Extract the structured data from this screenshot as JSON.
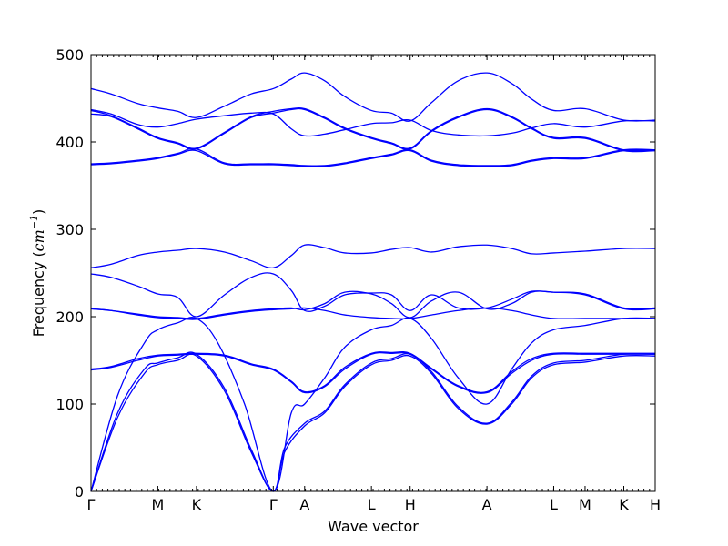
{
  "chart_data": {
    "type": "line",
    "xlabel": "Wave vector",
    "ylabel": "Frequency (cm⁻¹)",
    "ylabel_base": "Frequency (",
    "ylabel_unit": "cm",
    "ylabel_exp": "−1",
    "ylabel_close": ")",
    "ylim": [
      0,
      500
    ],
    "yticks": [
      0,
      100,
      200,
      300,
      400,
      500
    ],
    "grid": false,
    "line_color": "#0000ff",
    "path_points": [
      {
        "label": "Γ",
        "x": 0.0
      },
      {
        "label": "M",
        "x": 1.0
      },
      {
        "label": "K",
        "x": 1.58
      },
      {
        "label": "Γ",
        "x": 2.73
      },
      {
        "label": "A",
        "x": 3.2
      },
      {
        "label": "L",
        "x": 4.2
      },
      {
        "label": "H",
        "x": 4.78
      },
      {
        "label": "A",
        "x": 5.93
      },
      {
        "label": "L",
        "x": 6.93
      },
      {
        "label": "M",
        "x": 7.4
      },
      {
        "label": "K",
        "x": 7.98
      },
      {
        "label": "H",
        "x": 8.45
      }
    ],
    "series": [
      {
        "x": [
          0,
          0.4,
          0.8,
          1.0,
          1.3,
          1.58,
          2.0,
          2.4,
          2.73,
          2.9,
          3.2,
          3.5,
          3.8,
          4.2,
          4.5,
          4.78,
          5.1,
          5.5,
          5.93,
          6.3,
          6.6,
          6.93,
          7.4,
          7.98,
          8.45
        ],
        "y": [
          0,
          85,
          135,
          145,
          150,
          155,
          115,
          45,
          0,
          45,
          75,
          90,
          120,
          145,
          150,
          155,
          135,
          95,
          77,
          100,
          130,
          145,
          148,
          155,
          155
        ]
      },
      {
        "x": [
          0,
          0.4,
          0.8,
          1.0,
          1.3,
          1.58,
          2.0,
          2.4,
          2.73,
          2.9,
          3.2,
          3.5,
          3.8,
          4.2,
          4.5,
          4.78,
          5.1,
          5.5,
          5.93,
          6.3,
          6.6,
          6.93,
          7.4,
          7.98,
          8.45
        ],
        "y": [
          0,
          90,
          140,
          147,
          153,
          157,
          118,
          48,
          0,
          50,
          78,
          92,
          122,
          147,
          152,
          157,
          137,
          97,
          78,
          102,
          132,
          147,
          150,
          157,
          157
        ]
      },
      {
        "x": [
          0,
          0.4,
          0.8,
          1.0,
          1.3,
          1.58,
          1.9,
          2.3,
          2.73,
          3.0,
          3.2,
          3.5,
          3.8,
          4.2,
          4.5,
          4.78,
          5.1,
          5.5,
          5.93,
          6.3,
          6.6,
          6.93,
          7.4,
          7.98,
          8.45
        ],
        "y": [
          0,
          110,
          170,
          185,
          193,
          198,
          170,
          100,
          0,
          90,
          100,
          130,
          165,
          185,
          190,
          198,
          175,
          130,
          100,
          140,
          170,
          185,
          190,
          198,
          198
        ]
      },
      {
        "x": [
          0,
          0.3,
          0.7,
          1.0,
          1.3,
          1.58,
          2.0,
          2.4,
          2.73,
          3.0,
          3.2,
          3.5,
          3.8,
          4.2,
          4.5,
          4.78,
          5.1,
          5.5,
          5.93,
          6.3,
          6.6,
          6.93,
          7.4,
          7.98,
          8.45
        ],
        "y": [
          139,
          142,
          150,
          155,
          156,
          157,
          155,
          145,
          139,
          125,
          113,
          120,
          140,
          157,
          158,
          157,
          140,
          120,
          113,
          135,
          150,
          157,
          157,
          157,
          157
        ]
      },
      {
        "x": [
          0,
          0.3,
          0.7,
          1.0,
          1.3,
          1.58,
          2.0,
          2.4,
          2.73,
          3.0,
          3.2,
          3.5,
          3.8,
          4.2,
          4.5,
          4.78,
          5.1,
          5.5,
          5.93,
          6.3,
          6.6,
          6.93,
          7.4,
          7.98,
          8.45
        ],
        "y": [
          140,
          143,
          152,
          156,
          157,
          158,
          156,
          146,
          140,
          126,
          114,
          121,
          142,
          158,
          159,
          158,
          141,
          121,
          114,
          137,
          152,
          158,
          158,
          158,
          158
        ]
      },
      {
        "x": [
          0,
          0.3,
          0.7,
          1.0,
          1.3,
          1.58,
          2.0,
          2.4,
          2.73,
          3.0,
          3.2,
          3.5,
          3.8,
          4.2,
          4.5,
          4.78,
          5.1,
          5.5,
          5.93,
          6.3,
          6.6,
          6.93,
          7.4,
          7.98,
          8.45
        ],
        "y": [
          209,
          207,
          202,
          199,
          198,
          197,
          202,
          206,
          208,
          209,
          210,
          207,
          202,
          199,
          198,
          198,
          202,
          207,
          210,
          207,
          202,
          198,
          198,
          198,
          198
        ]
      },
      {
        "x": [
          0,
          0.3,
          0.7,
          1.0,
          1.3,
          1.58,
          2.0,
          2.4,
          2.73,
          3.0,
          3.2,
          3.5,
          3.8,
          4.2,
          4.5,
          4.78,
          5.1,
          5.5,
          5.93,
          6.3,
          6.6,
          6.93,
          7.4,
          7.98,
          8.45
        ],
        "y": [
          209,
          207,
          203,
          200,
          199,
          198,
          203,
          207,
          209,
          210,
          208,
          215,
          228,
          226,
          215,
          199,
          218,
          228,
          209,
          215,
          228,
          228,
          225,
          209,
          209
        ]
      },
      {
        "x": [
          0,
          0.3,
          0.7,
          1.0,
          1.3,
          1.58,
          2.0,
          2.4,
          2.73,
          3.0,
          3.2,
          3.5,
          3.8,
          4.2,
          4.5,
          4.78,
          5.1,
          5.5,
          5.93,
          6.3,
          6.6,
          6.93,
          7.4,
          7.98,
          8.45
        ],
        "y": [
          249,
          245,
          235,
          226,
          222,
          200,
          225,
          245,
          249,
          230,
          207,
          212,
          225,
          227,
          225,
          207,
          225,
          210,
          210,
          220,
          229,
          228,
          226,
          210,
          210
        ]
      },
      {
        "x": [
          0,
          0.3,
          0.7,
          1.0,
          1.3,
          1.58,
          2.0,
          2.4,
          2.73,
          3.0,
          3.2,
          3.5,
          3.8,
          4.2,
          4.5,
          4.78,
          5.1,
          5.5,
          5.93,
          6.3,
          6.6,
          6.93,
          7.4,
          7.98,
          8.45
        ],
        "y": [
          256,
          260,
          270,
          274,
          276,
          278,
          274,
          264,
          256,
          270,
          282,
          279,
          273,
          273,
          277,
          279,
          274,
          280,
          282,
          278,
          272,
          273,
          275,
          278,
          278
        ]
      },
      {
        "x": [
          0,
          0.3,
          0.7,
          1.0,
          1.3,
          1.58,
          2.0,
          2.4,
          2.73,
          3.0,
          3.2,
          3.5,
          3.8,
          4.2,
          4.5,
          4.78,
          5.1,
          5.5,
          5.93,
          6.3,
          6.6,
          6.93,
          7.4,
          7.98,
          8.45
        ],
        "y": [
          374,
          375,
          378,
          381,
          386,
          390,
          375,
          374,
          374,
          373,
          372,
          372,
          375,
          381,
          385,
          390,
          378,
          373,
          372,
          373,
          378,
          381,
          381,
          390,
          390
        ]
      },
      {
        "x": [
          0,
          0.3,
          0.7,
          1.0,
          1.3,
          1.58,
          2.0,
          2.4,
          2.73,
          3.0,
          3.2,
          3.5,
          3.8,
          4.2,
          4.5,
          4.78,
          5.1,
          5.5,
          5.93,
          6.3,
          6.6,
          6.93,
          7.4,
          7.98,
          8.45
        ],
        "y": [
          375,
          376,
          379,
          382,
          387,
          392,
          376,
          375,
          375,
          374,
          373,
          373,
          376,
          382,
          386,
          391,
          379,
          374,
          373,
          374,
          379,
          382,
          382,
          391,
          391
        ]
      },
      {
        "x": [
          0,
          0.3,
          0.7,
          1.0,
          1.3,
          1.58,
          2.0,
          2.4,
          2.73,
          3.0,
          3.2,
          3.5,
          3.8,
          4.2,
          4.5,
          4.78,
          5.1,
          5.5,
          5.93,
          6.3,
          6.6,
          6.93,
          7.4,
          7.98,
          8.45
        ],
        "y": [
          432,
          429,
          415,
          404,
          398,
          392,
          410,
          428,
          433,
          437,
          437,
          427,
          415,
          404,
          398,
          392,
          412,
          428,
          437,
          428,
          415,
          404,
          404,
          390,
          390
        ]
      },
      {
        "x": [
          0,
          0.3,
          0.7,
          1.0,
          1.3,
          1.58,
          2.0,
          2.4,
          2.73,
          3.0,
          3.2,
          3.5,
          3.8,
          4.2,
          4.5,
          4.78,
          5.1,
          5.5,
          5.93,
          6.3,
          6.6,
          6.93,
          7.4,
          7.98,
          8.45
        ],
        "y": [
          436,
          430,
          416,
          405,
          399,
          393,
          411,
          429,
          435,
          438,
          438,
          428,
          416,
          405,
          399,
          393,
          413,
          429,
          438,
          429,
          416,
          405,
          405,
          391,
          391
        ]
      },
      {
        "x": [
          0,
          0.3,
          0.7,
          1.0,
          1.3,
          1.58,
          2.0,
          2.4,
          2.73,
          3.0,
          3.2,
          3.5,
          3.8,
          4.2,
          4.5,
          4.78,
          5.1,
          5.5,
          5.93,
          6.3,
          6.6,
          6.93,
          7.4,
          7.98,
          8.45
        ],
        "y": [
          437,
          432,
          420,
          417,
          421,
          426,
          430,
          433,
          432,
          415,
          407,
          409,
          414,
          421,
          422,
          425,
          413,
          408,
          407,
          410,
          416,
          421,
          417,
          424,
          424
        ]
      },
      {
        "x": [
          0,
          0.3,
          0.7,
          1.0,
          1.3,
          1.58,
          2.0,
          2.4,
          2.73,
          3.0,
          3.2,
          3.5,
          3.8,
          4.2,
          4.5,
          4.78,
          5.1,
          5.5,
          5.93,
          6.3,
          6.6,
          6.93,
          7.4,
          7.98,
          8.45
        ],
        "y": [
          461,
          455,
          444,
          439,
          435,
          428,
          441,
          455,
          461,
          472,
          479,
          470,
          452,
          436,
          433,
          424,
          445,
          470,
          479,
          467,
          449,
          436,
          438,
          425,
          425
        ]
      }
    ]
  }
}
